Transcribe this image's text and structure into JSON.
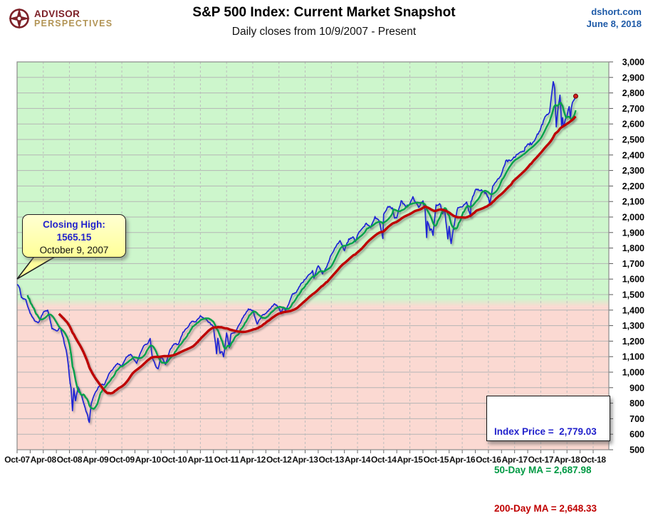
{
  "header": {
    "logo_line1": "ADVISOR",
    "logo_line2": "PERSPECTIVES",
    "title": "S&P 500 Index: Current Market Snapshot",
    "subtitle": "Daily closes from 10/9/2007 - Present",
    "source": "dshort.com",
    "date": "June 8, 2018",
    "source_color": "#1F5BA8",
    "brand_maroon": "#7D2128",
    "brand_gold": "#B29455"
  },
  "callout": {
    "line1": "Closing High:",
    "line2": "1565.15",
    "line3": "October 9, 2007",
    "accent_color": "#2222CC",
    "fill_color": "#FFFF9C"
  },
  "legend": {
    "items": [
      {
        "label": "Index Price",
        "value": "2,779.03",
        "text": "Index Price =  2,779.03",
        "color": "#2222CC"
      },
      {
        "label": "50-Day MA",
        "value": "2,687.98",
        "text": "50-Day MA = 2,687.98",
        "color": "#009A44"
      },
      {
        "label": "200-Day MA",
        "value": "2,648.33",
        "text": "200-Day MA = 2,648.33",
        "color": "#C00000"
      }
    ]
  },
  "chart_data": {
    "type": "line",
    "title": "S&P 500 Index: Current Market Snapshot",
    "subtitle": "Daily closes from 10/9/2007 - Present",
    "x_axis": {
      "tick_labels": [
        "Oct-07",
        "Apr-08",
        "Oct-08",
        "Apr-09",
        "Oct-09",
        "Apr-10",
        "Oct-10",
        "Apr-11",
        "Oct-11",
        "Apr-12",
        "Oct-12",
        "Apr-13",
        "Oct-13",
        "Apr-14",
        "Oct-14",
        "Apr-15",
        "Oct-15",
        "Apr-16",
        "Oct-16",
        "Apr-17",
        "Oct-17",
        "Apr-18",
        "Oct-18"
      ],
      "tick_interval_months": 6,
      "minor_tick_interval_months": 3,
      "total_months": 132
    },
    "y_axis": {
      "min": 500,
      "max": 3000,
      "tick_step": 100,
      "tick_labels": [
        "3,000",
        "2,900",
        "2,800",
        "2,700",
        "2,600",
        "2,500",
        "2,400",
        "2,300",
        "2,200",
        "2,100",
        "2,000",
        "1,900",
        "1,800",
        "1,700",
        "1,600",
        "1,500",
        "1,400",
        "1,300",
        "1,200",
        "1,100",
        "1,000",
        "900",
        "800",
        "700",
        "600",
        "500"
      ]
    },
    "background": {
      "threshold_value": 1450,
      "above_color": "#CDF6CC",
      "below_color": "#FBD9D2",
      "grid_color": "#b5b5b5",
      "border_color": "#8a8a8a"
    },
    "series": [
      {
        "name": "S&P 500 Index Price (daily close)",
        "color": "#1E22D6",
        "points": [
          [
            0,
            1565
          ],
          [
            0.6,
            1540
          ],
          [
            1,
            1481
          ],
          [
            2,
            1468
          ],
          [
            3,
            1379
          ],
          [
            4,
            1331
          ],
          [
            5,
            1323
          ],
          [
            6,
            1386
          ],
          [
            7,
            1400
          ],
          [
            8,
            1280
          ],
          [
            9,
            1267
          ],
          [
            10,
            1283
          ],
          [
            11,
            1166
          ],
          [
            11.5,
            1099
          ],
          [
            12,
            969
          ],
          [
            12.35,
            899
          ],
          [
            12.7,
            752
          ],
          [
            13,
            896
          ],
          [
            13.4,
            816
          ],
          [
            14,
            903
          ],
          [
            15,
            826
          ],
          [
            16,
            735
          ],
          [
            16.55,
            676
          ],
          [
            17,
            798
          ],
          [
            18,
            873
          ],
          [
            19,
            919
          ],
          [
            20,
            919
          ],
          [
            21,
            987
          ],
          [
            22,
            1021
          ],
          [
            23,
            1057
          ],
          [
            24,
            1036
          ],
          [
            25,
            1096
          ],
          [
            26,
            1115
          ],
          [
            27,
            1074
          ],
          [
            27.4,
            1057
          ],
          [
            28,
            1104
          ],
          [
            29,
            1169
          ],
          [
            30,
            1187
          ],
          [
            30.5,
            1217
          ],
          [
            31,
            1089
          ],
          [
            31.9,
            1031
          ],
          [
            32.3,
            1022
          ],
          [
            33,
            1102
          ],
          [
            34,
            1049
          ],
          [
            35,
            1141
          ],
          [
            36,
            1183
          ],
          [
            37,
            1181
          ],
          [
            38,
            1258
          ],
          [
            39,
            1286
          ],
          [
            40,
            1327
          ],
          [
            41,
            1326
          ],
          [
            42,
            1364
          ],
          [
            43,
            1345
          ],
          [
            44,
            1321
          ],
          [
            45,
            1292
          ],
          [
            45.7,
            1119
          ],
          [
            46,
            1219
          ],
          [
            46.5,
            1121
          ],
          [
            47,
            1131
          ],
          [
            47.3,
            1099
          ],
          [
            48,
            1253
          ],
          [
            48.6,
            1158
          ],
          [
            49,
            1247
          ],
          [
            50,
            1258
          ],
          [
            51,
            1312
          ],
          [
            52,
            1366
          ],
          [
            53,
            1408
          ],
          [
            54,
            1398
          ],
          [
            55,
            1310
          ],
          [
            56,
            1362
          ],
          [
            57,
            1379
          ],
          [
            58,
            1407
          ],
          [
            59,
            1441
          ],
          [
            60,
            1412
          ],
          [
            60.5,
            1380
          ],
          [
            61,
            1416
          ],
          [
            61.5,
            1398
          ],
          [
            62,
            1426
          ],
          [
            63,
            1498
          ],
          [
            64,
            1515
          ],
          [
            65,
            1569
          ],
          [
            66,
            1598
          ],
          [
            67,
            1631
          ],
          [
            67.7,
            1655
          ],
          [
            68,
            1606
          ],
          [
            69,
            1686
          ],
          [
            70,
            1633
          ],
          [
            71,
            1682
          ],
          [
            72,
            1757
          ],
          [
            73,
            1806
          ],
          [
            74,
            1848
          ],
          [
            75,
            1783
          ],
          [
            76,
            1859
          ],
          [
            77,
            1872
          ],
          [
            77.5,
            1841
          ],
          [
            78,
            1884
          ],
          [
            79,
            1924
          ],
          [
            80,
            1960
          ],
          [
            81,
            1931
          ],
          [
            82,
            2003
          ],
          [
            83,
            1972
          ],
          [
            83.8,
            1862
          ],
          [
            84,
            2018
          ],
          [
            85,
            2068
          ],
          [
            86,
            2059
          ],
          [
            86.5,
            1993
          ],
          [
            87,
            1995
          ],
          [
            88,
            2105
          ],
          [
            89,
            2068
          ],
          [
            90,
            2086
          ],
          [
            90.7,
            2131
          ],
          [
            91,
            2107
          ],
          [
            92,
            2063
          ],
          [
            93,
            2104
          ],
          [
            93.5,
            2046
          ],
          [
            93.85,
            1868
          ],
          [
            94,
            1972
          ],
          [
            94.6,
            1913
          ],
          [
            95,
            1920
          ],
          [
            95.3,
            1882
          ],
          [
            96,
            2079
          ],
          [
            97,
            2080
          ],
          [
            97.5,
            2021
          ],
          [
            98,
            2044
          ],
          [
            98.7,
            1859
          ],
          [
            99,
            1940
          ],
          [
            99.45,
            1829
          ],
          [
            100,
            1932
          ],
          [
            101,
            2060
          ],
          [
            102,
            2065
          ],
          [
            103,
            2097
          ],
          [
            103.5,
            2041
          ],
          [
            103.9,
            2001
          ],
          [
            104,
            2099
          ],
          [
            105,
            2174
          ],
          [
            106,
            2171
          ],
          [
            107,
            2168
          ],
          [
            108,
            2126
          ],
          [
            108.3,
            2085
          ],
          [
            109,
            2199
          ],
          [
            110,
            2239
          ],
          [
            111,
            2279
          ],
          [
            112,
            2364
          ],
          [
            113,
            2363
          ],
          [
            114,
            2384
          ],
          [
            115,
            2412
          ],
          [
            116,
            2423
          ],
          [
            117,
            2470
          ],
          [
            118,
            2472
          ],
          [
            119,
            2519
          ],
          [
            120,
            2575
          ],
          [
            121,
            2648
          ],
          [
            122,
            2674
          ],
          [
            122.85,
            2873
          ],
          [
            123.2,
            2824
          ],
          [
            123.55,
            2581
          ],
          [
            124,
            2714
          ],
          [
            124.4,
            2786
          ],
          [
            124.75,
            2588
          ],
          [
            125,
            2641
          ],
          [
            125.15,
            2582
          ],
          [
            126,
            2648
          ],
          [
            126.5,
            2712
          ],
          [
            126.8,
            2635
          ],
          [
            127,
            2705
          ],
          [
            127.5,
            2750
          ],
          [
            128,
            2779
          ]
        ],
        "last_value": 2779.03
      },
      {
        "name": "50-Day Moving Average",
        "color": "#00A14B",
        "derived": "trailing moving average of index price, 50 trading days",
        "window_months": 2.4,
        "start_month": 2.4,
        "end_value": 2687.98
      },
      {
        "name": "200-Day Moving Average",
        "color": "#BE0000",
        "derived": "trailing moving average of index price, 200 trading days",
        "window_months": 9.5,
        "start_month": 9.5,
        "end_value": 2648.33
      }
    ],
    "volatility_periods": [
      [
        3,
        10,
        1.4
      ],
      [
        10.5,
        18,
        2.6
      ],
      [
        30,
        34,
        1.7
      ],
      [
        44.5,
        49,
        1.9
      ],
      [
        93,
        101,
        1.5
      ],
      [
        122.5,
        128,
        1.6
      ]
    ],
    "end_marker": {
      "month": 128,
      "value": 2779.03,
      "fill": "#D02020",
      "stroke": "#6A0000"
    },
    "legend_position": "bottom-right",
    "grid": "on"
  }
}
